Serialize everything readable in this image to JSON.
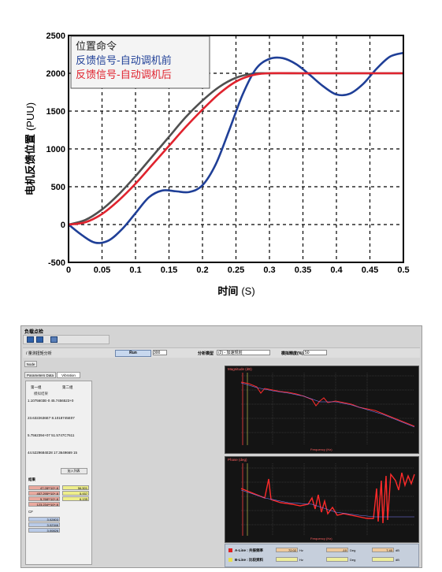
{
  "chart_data": {
    "type": "line",
    "title": "",
    "xlabel": "时间",
    "xlabel_unit": "(S)",
    "ylabel": "电机反馈位置",
    "ylabel_unit": "(PUU)",
    "xlim": [
      0,
      0.5
    ],
    "ylim": [
      -500,
      2500
    ],
    "xticks": [
      "0",
      "0.05",
      "0.1",
      "0.15",
      "0.2",
      "0.25",
      "0.3",
      "0.35",
      "0.4",
      "0.45",
      "0.5"
    ],
    "yticks": [
      "-500",
      "0",
      "500",
      "1000",
      "1500",
      "2000",
      "2500"
    ],
    "grid": true,
    "legend_position": "top-left",
    "series": [
      {
        "name": "位置命令",
        "color": "#505050",
        "x": [
          0,
          0.025,
          0.05,
          0.075,
          0.1,
          0.125,
          0.15,
          0.175,
          0.2,
          0.225,
          0.25,
          0.275,
          0.3,
          0.35,
          0.4,
          0.45,
          0.5
        ],
        "y": [
          0,
          60,
          200,
          400,
          640,
          900,
          1160,
          1420,
          1640,
          1820,
          1940,
          1995,
          2000,
          2000,
          2000,
          2000,
          2000
        ]
      },
      {
        "name": "反馈信号-自动调机前",
        "color": "#1f3f97",
        "x": [
          0,
          0.02,
          0.04,
          0.06,
          0.08,
          0.1,
          0.12,
          0.14,
          0.16,
          0.18,
          0.2,
          0.22,
          0.24,
          0.26,
          0.28,
          0.3,
          0.32,
          0.34,
          0.36,
          0.38,
          0.4,
          0.42,
          0.44,
          0.46,
          0.48,
          0.5
        ],
        "y": [
          0,
          -140,
          -240,
          -210,
          -60,
          150,
          360,
          450,
          440,
          430,
          520,
          800,
          1250,
          1720,
          2060,
          2190,
          2200,
          2120,
          1980,
          1830,
          1720,
          1730,
          1860,
          2060,
          2220,
          2270
        ]
      },
      {
        "name": "反馈信号-自动调机后",
        "color": "#e0232e",
        "x": [
          0,
          0.025,
          0.05,
          0.075,
          0.1,
          0.125,
          0.15,
          0.175,
          0.2,
          0.225,
          0.25,
          0.275,
          0.3,
          0.35,
          0.4,
          0.45,
          0.5
        ],
        "y": [
          0,
          30,
          140,
          320,
          540,
          790,
          1040,
          1290,
          1520,
          1730,
          1890,
          1975,
          2000,
          2000,
          2000,
          2000,
          2000
        ]
      }
    ]
  },
  "screenshot": {
    "window_title": "负载点检",
    "toolbar_label": "/ 量测扭矩分析",
    "run_label": "Run",
    "field1_value": "300",
    "combo1_label": "分析模型",
    "combo1_value": "(2) - 加速规划",
    "combo2_label": "模拟精度(%)",
    "combo2_value": "50",
    "tabs": [
      "Node",
      "Parameters Data",
      "Vibration"
    ],
    "left_panel": {
      "col1": "第一组",
      "col2": "第二组",
      "sub": "模拟结果",
      "values": [
        "1.1075603E-0 45.7456523+0",
        "23.6322636E7 8.1018745E07",
        "5.7562394+07 51.5747C7611",
        "44.5229684E28 17.3649669 15"
      ],
      "load_button": "加入列表",
      "result_label": "结果",
      "result_cells": [
        "47.28**10^-6",
        "457.295**10^-6",
        "5,768**10^-6",
        "123.234**10^-6"
      ],
      "right_cells": [
        "56.501",
        "5.937",
        "6.135"
      ],
      "cf_cells": [
        "3.02803",
        "3.02346",
        "3.00826"
      ],
      "cf_label": "CF"
    },
    "plot1_title": "Magnitude (dB)",
    "plot1_xlabel": "Frequency (Hz)",
    "plot2_title": "Phase (deg)",
    "plot2_xlabel": "Frequency (Hz)",
    "status": {
      "row1_label": "A-Line : 共振频率",
      "row1_val1": "72.02",
      "row1_unit1": "Hz",
      "row1_val2": "-10",
      "row1_unit2": "Deg",
      "row1_val3": "7.40",
      "row1_unit3": "dB",
      "row2_label": "B-Line : 比较资料",
      "row2_unit1": "Hz",
      "row2_unit2": "Deg",
      "row2_unit3": "dB"
    }
  }
}
